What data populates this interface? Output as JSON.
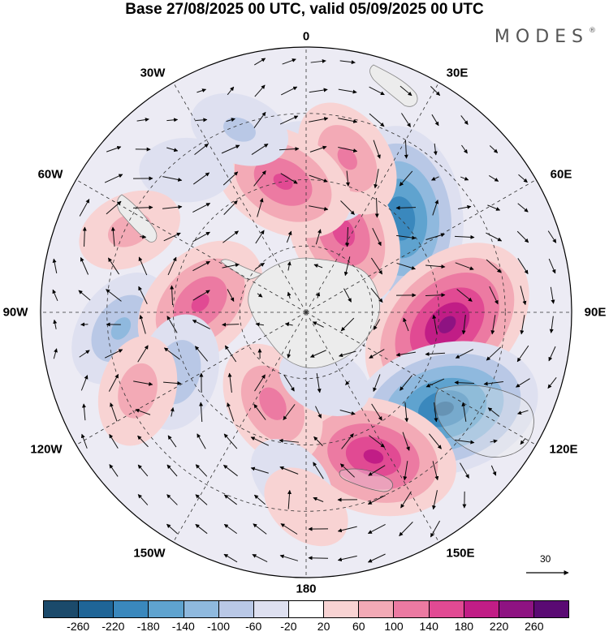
{
  "title": "Base 27/08/2025 00 UTC, valid 05/09/2025 00 UTC",
  "brand": "MODES",
  "brand_mark": "®",
  "longitude_labels": {
    "lon_0": "0",
    "lon_30e": "30E",
    "lon_60e": "60E",
    "lon_90e": "90E",
    "lon_120e": "120E",
    "lon_150e": "150E",
    "lon_180": "180",
    "lon_150w": "150W",
    "lon_120w": "120W",
    "lon_90w": "90W",
    "lon_60w": "60W",
    "lon_30w": "30W"
  },
  "reference_vector": {
    "label": "30"
  },
  "colorbar": {
    "colors": [
      "#1b4a6b",
      "#1f6597",
      "#3a88bd",
      "#5fa3cf",
      "#8fb9de",
      "#b9c8e6",
      "#dee0f0",
      "#ffffff",
      "#f8d3d3",
      "#f3aab6",
      "#ec7aa2",
      "#e14a93",
      "#c11d86",
      "#8e1382",
      "#5a0a73"
    ],
    "ticks": [
      "-260",
      "-220",
      "-180",
      "-140",
      "-100",
      "-60",
      "-20",
      "20",
      "60",
      "100",
      "140",
      "180",
      "220",
      "260"
    ]
  },
  "anomaly_centers": [
    {
      "lon": 45,
      "colat": 30,
      "value": -220
    },
    {
      "lon": 95,
      "colat": 32,
      "value": 230
    },
    {
      "lon": 125,
      "colat": 38,
      "value": -230
    },
    {
      "lon": 155,
      "colat": 36,
      "value": 190
    },
    {
      "lon": 25,
      "colat": 20,
      "value": 160
    },
    {
      "lon": 5,
      "colat": 32,
      "value": -100
    },
    {
      "lon": 15,
      "colat": 36,
      "value": 110
    },
    {
      "lon": 350,
      "colat": 30,
      "value": 150
    },
    {
      "lon": 320,
      "colat": 42,
      "value": -60
    },
    {
      "lon": 295,
      "colat": 44,
      "value": 80
    },
    {
      "lon": 265,
      "colat": 42,
      "value": -110
    },
    {
      "lon": 275,
      "colat": 24,
      "value": 150
    },
    {
      "lon": 245,
      "colat": 32,
      "value": -100
    },
    {
      "lon": 245,
      "colat": 42,
      "value": 90
    },
    {
      "lon": 200,
      "colat": 22,
      "value": 120
    },
    {
      "lon": 165,
      "colat": 16,
      "value": -60
    },
    {
      "lon": 185,
      "colat": 38,
      "value": -60
    },
    {
      "lon": 180,
      "colat": 44,
      "value": 60
    },
    {
      "lon": 100,
      "colat": 8,
      "value": 50
    },
    {
      "lon": 340,
      "colat": 44,
      "value": -70
    }
  ]
}
